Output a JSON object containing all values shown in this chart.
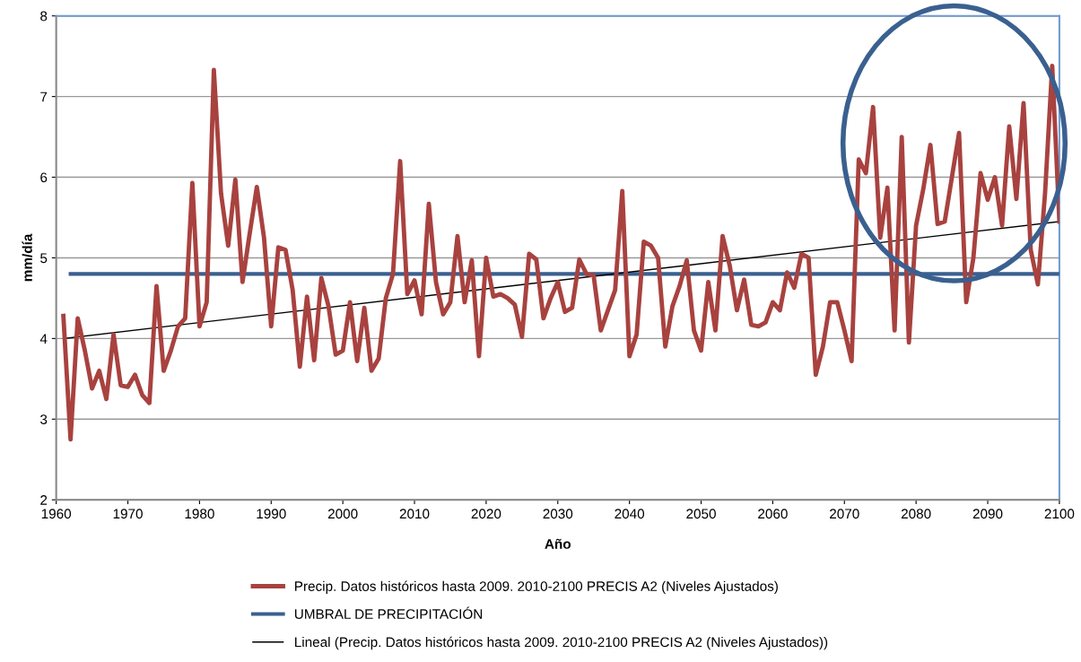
{
  "chart_data": {
    "type": "line",
    "xlabel": "Año",
    "ylabel": "mm/día",
    "xlim": [
      1960,
      2100
    ],
    "xticks": [
      1960,
      1970,
      1980,
      1990,
      2000,
      2010,
      2020,
      2030,
      2040,
      2050,
      2060,
      2070,
      2080,
      2090,
      2100
    ],
    "ylim": [
      2,
      8
    ],
    "yticks": [
      2,
      3,
      4,
      5,
      6,
      7,
      8
    ],
    "grid": "y",
    "legend": "bottom",
    "marker": "none",
    "line_style": "solid",
    "series": [
      {
        "name": "Precip. Datos históricos hasta 2009. 2010-2100 PRECIS A2 (Niveles Ajustados)",
        "color": "#a8423f",
        "x": [
          1961,
          1962,
          1963,
          1964,
          1965,
          1966,
          1967,
          1968,
          1969,
          1970,
          1971,
          1972,
          1973,
          1974,
          1975,
          1976,
          1977,
          1978,
          1979,
          1980,
          1981,
          1982,
          1983,
          1984,
          1985,
          1986,
          1987,
          1988,
          1989,
          1990,
          1991,
          1992,
          1993,
          1994,
          1995,
          1996,
          1997,
          1998,
          1999,
          2000,
          2001,
          2002,
          2003,
          2004,
          2005,
          2006,
          2007,
          2008,
          2009,
          2010,
          2011,
          2012,
          2013,
          2014,
          2015,
          2016,
          2017,
          2018,
          2019,
          2020,
          2021,
          2022,
          2023,
          2024,
          2025,
          2026,
          2027,
          2028,
          2029,
          2030,
          2031,
          2032,
          2033,
          2034,
          2035,
          2036,
          2037,
          2038,
          2039,
          2040,
          2041,
          2042,
          2043,
          2044,
          2045,
          2046,
          2047,
          2048,
          2049,
          2050,
          2051,
          2052,
          2053,
          2054,
          2055,
          2056,
          2057,
          2058,
          2059,
          2060,
          2061,
          2062,
          2063,
          2064,
          2065,
          2066,
          2067,
          2068,
          2069,
          2070,
          2071,
          2072,
          2073,
          2074,
          2075,
          2076,
          2077,
          2078,
          2079,
          2080,
          2081,
          2082,
          2083,
          2084,
          2085,
          2086,
          2087,
          2088,
          2089,
          2090,
          2091,
          2092,
          2093,
          2094,
          2095,
          2096,
          2097,
          2098,
          2099,
          2100
        ],
        "values": [
          4.28,
          2.75,
          4.25,
          3.85,
          3.38,
          3.6,
          3.25,
          4.05,
          3.42,
          3.4,
          3.55,
          3.3,
          3.2,
          4.65,
          3.6,
          3.85,
          4.15,
          4.25,
          5.93,
          4.15,
          4.45,
          7.33,
          5.8,
          5.15,
          5.97,
          4.7,
          5.3,
          5.88,
          5.25,
          4.15,
          5.13,
          5.1,
          4.6,
          3.65,
          4.52,
          3.73,
          4.75,
          4.4,
          3.8,
          3.85,
          4.45,
          3.72,
          4.38,
          3.6,
          3.75,
          4.5,
          4.8,
          6.2,
          4.55,
          4.72,
          4.3,
          5.67,
          4.7,
          4.3,
          4.45,
          5.27,
          4.45,
          4.97,
          3.78,
          5.0,
          4.52,
          4.55,
          4.5,
          4.42,
          4.02,
          5.05,
          4.98,
          4.25,
          4.5,
          4.7,
          4.33,
          4.38,
          4.98,
          4.8,
          4.78,
          4.1,
          4.35,
          4.6,
          5.83,
          3.78,
          4.05,
          5.2,
          5.15,
          5.0,
          3.9,
          4.4,
          4.65,
          4.97,
          4.1,
          3.85,
          4.7,
          4.1,
          5.27,
          4.9,
          4.35,
          4.73,
          4.17,
          4.15,
          4.2,
          4.45,
          4.35,
          4.82,
          4.63,
          5.05,
          5.0,
          3.55,
          3.9,
          4.45,
          4.45,
          4.1,
          3.72,
          6.22,
          6.05,
          6.87,
          5.25,
          5.87,
          4.1,
          6.5,
          3.95,
          5.4,
          5.85,
          6.4,
          5.42,
          5.45,
          6.0,
          6.55,
          4.45,
          5.0,
          6.05,
          5.72,
          6.0,
          5.4,
          6.63,
          5.73,
          6.92,
          5.1,
          4.67,
          5.8,
          7.38,
          5.45
        ]
      },
      {
        "name": "UMBRAL DE PRECIPITACIÓN",
        "color": "#3a6090",
        "x": [
          1962,
          2100
        ],
        "values": [
          4.8,
          4.8
        ]
      },
      {
        "name": "Lineal (Precip. Datos históricos hasta 2009. 2010-2100 PRECIS A2 (Niveles Ajustados))",
        "color": "#000000",
        "x": [
          1961,
          2100
        ],
        "values": [
          4.0,
          5.45
        ]
      }
    ]
  }
}
